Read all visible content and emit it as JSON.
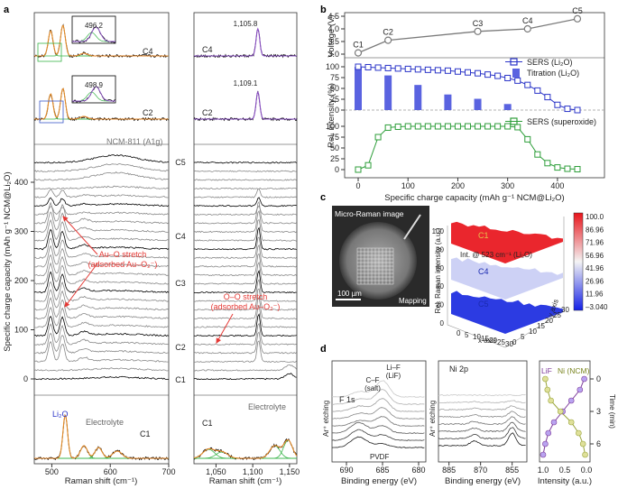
{
  "chart_data": [
    {
      "panel": "a",
      "type": "line",
      "xlabel": "Raman shift (cm⁻¹)",
      "ylabel": "Specific charge capacity (mAh g⁻¹ NCM@Li₂O)",
      "left_xticks": [
        500,
        600,
        700
      ],
      "right_xticks": [
        "1,050",
        "1,100",
        "1,150"
      ],
      "left_xlim": [
        470,
        700
      ],
      "right_xlim": [
        1020,
        1160
      ],
      "yticks": [
        0,
        100,
        200,
        300,
        400
      ],
      "inset_peaks": [
        "496.2",
        "498.9"
      ],
      "peak_labels": [
        "1,105.8",
        "1,109.1"
      ],
      "stage_labels": [
        "C1",
        "C2",
        "C3",
        "C4",
        "C5"
      ],
      "annotations": {
        "ncm": "NCM-811 (A1g)",
        "auo": "Au–O stretch",
        "auo2": "(adsorbed Au–O₂⁻)",
        "oo": "O–O stretch",
        "oo2": "(adsorbed Au–O₂⁻)",
        "li2o": "Li₂O",
        "electrolyte": "Electrolyte"
      },
      "colors": {
        "data": "#000000",
        "fit": "#e8892a",
        "comp": "#3ab54a",
        "arrow": "#e53935",
        "ann": "#e53935"
      }
    },
    {
      "panel": "b",
      "type": "line",
      "xlabel": "Specific charge capacity (mAh g⁻¹ NCM@Li₂O)",
      "ylabel_top": "Voltage (V)",
      "ylabel_bottom": "Rel. intensity (%)",
      "xticks": [
        0,
        100,
        200,
        300,
        400
      ],
      "voltage_yticks": [
        "3.0",
        "3.5",
        "4.0",
        "4.5"
      ],
      "intensity_yticks": [
        0,
        25,
        50,
        75,
        100
      ],
      "voltage_points": [
        {
          "label": "C1",
          "x": 0,
          "y": 3.05
        },
        {
          "label": "C2",
          "x": 60,
          "y": 3.55
        },
        {
          "label": "C3",
          "x": 240,
          "y": 3.9
        },
        {
          "label": "C4",
          "x": 340,
          "y": 4.0
        },
        {
          "label": "C5",
          "x": 440,
          "y": 4.4
        }
      ],
      "sers_li2o": {
        "name": "SERS (Li₂O)",
        "x": [
          0,
          20,
          40,
          60,
          80,
          100,
          120,
          140,
          160,
          180,
          200,
          220,
          240,
          260,
          280,
          300,
          320,
          340,
          360,
          380,
          400,
          420,
          440
        ],
        "y": [
          100,
          99,
          98,
          97,
          96,
          95,
          94,
          93,
          92,
          91,
          89,
          87,
          85,
          82,
          79,
          74,
          68,
          58,
          45,
          30,
          12,
          3,
          0
        ]
      },
      "titration_li2o": {
        "name": "Titration (Li₂O)",
        "x": [
          0,
          60,
          120,
          180,
          240,
          300
        ],
        "y": [
          100,
          80,
          58,
          36,
          26,
          14
        ]
      },
      "sers_superoxide": {
        "name": "SERS (superoxide)",
        "x": [
          0,
          20,
          40,
          60,
          80,
          100,
          120,
          140,
          160,
          180,
          200,
          220,
          240,
          260,
          280,
          300,
          320,
          340,
          360,
          380,
          400,
          420,
          440
        ],
        "y": [
          0,
          10,
          75,
          97,
          99,
          100,
          100,
          100,
          100,
          100,
          100,
          100,
          100,
          100,
          100,
          100,
          98,
          70,
          35,
          15,
          5,
          2,
          1
        ]
      },
      "colors": {
        "voltage": "#7a7a7a",
        "li2o": "#2b35c8",
        "superoxide": "#2e9e3a"
      }
    },
    {
      "panel": "c",
      "type": "heatmap",
      "image_title": "Micro-Raman image",
      "scalebar": "100 µm",
      "mapping_label": "Mapping",
      "zlabel": "Rel. Raman intensity (a.u.)",
      "ztick": [
        0,
        20,
        40,
        60,
        80,
        100
      ],
      "xaxis_label": "x axis",
      "yaxis_label": "y axis",
      "xticks": [
        0,
        5,
        10,
        15,
        20,
        25,
        30
      ],
      "yticks": [
        0,
        5,
        10,
        15,
        20,
        25,
        30
      ],
      "intensity_label": "Int. @ 523 cm⁻¹ (Li₂O)",
      "surfaces": [
        "C1",
        "C4",
        "C5"
      ],
      "colorbar": [
        "100.0",
        "86.96",
        "71.96",
        "56.96",
        "41.96",
        "26.96",
        "11.96",
        "–3.040"
      ]
    },
    {
      "panel": "d",
      "type": "line",
      "f1s_title": "F 1s",
      "ni2p_title": "Ni 2p",
      "etching": "Ar⁺ etching",
      "peak_cf": "C–F",
      "peak_cf2": "(salt)",
      "peak_lif": "Li–F",
      "peak_lif2": "(LiF)",
      "pvdf": "PVDF",
      "f1s_xticks": [
        690,
        685,
        680
      ],
      "ni2p_xticks": [
        885,
        870,
        855
      ],
      "profile_xticks": [
        "1.0",
        "0.5",
        "0.0"
      ],
      "xlabel_be": "Binding energy (eV)",
      "xlabel_int": "Intensity (a.u.)",
      "legend_lif": "LiF",
      "legend_ni": "Ni (NCM)",
      "time_label": "Time (min)",
      "time_ticks": [
        0,
        3,
        6
      ],
      "lif_profile": {
        "time": [
          0,
          1,
          2,
          3,
          4,
          5,
          6,
          7
        ],
        "intensity": [
          0.05,
          0.15,
          0.35,
          0.55,
          0.75,
          0.88,
          0.95,
          1.0
        ]
      },
      "ni_profile": {
        "time": [
          0,
          1,
          2,
          3,
          4,
          5,
          6,
          7
        ],
        "intensity": [
          0.95,
          0.9,
          0.82,
          0.6,
          0.35,
          0.18,
          0.08,
          0.03
        ]
      },
      "colors": {
        "lif": "#7d3a9a",
        "ni": "#9aa53a"
      }
    }
  ]
}
